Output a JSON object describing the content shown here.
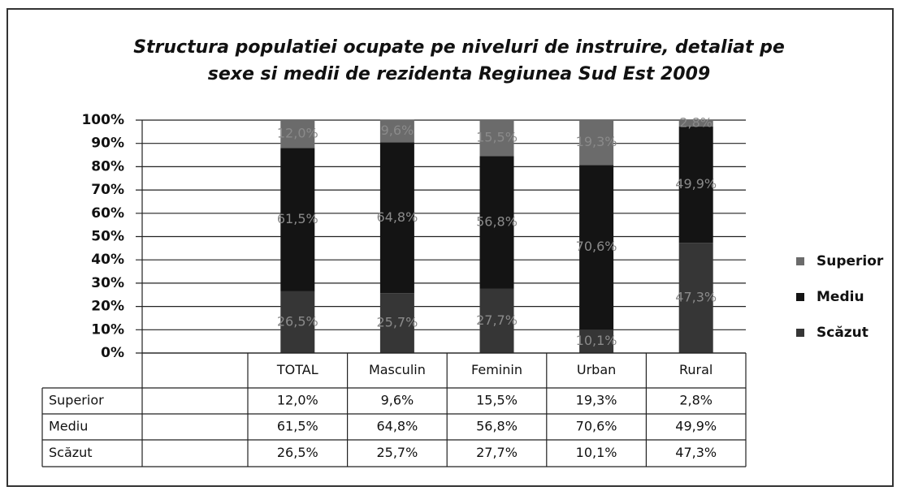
{
  "chart_data": {
    "type": "stacked_bar",
    "title": "Structura populatiei ocupate pe niveluri de instruire, detaliat pe sexe si medii de rezidenta Regiunea Sud Est 2009",
    "categories": [
      "TOTAL",
      "Masculin",
      "Feminin",
      "Urban",
      "Rural"
    ],
    "series": [
      {
        "name": "Scăzut",
        "color": "#363636",
        "values": [
          26.5,
          25.7,
          27.7,
          10.1,
          47.3
        ],
        "value_labels": [
          "26,5%",
          "25,7%",
          "27,7%",
          "10,1%",
          "47,3%"
        ]
      },
      {
        "name": "Mediu",
        "color": "#141414",
        "values": [
          61.5,
          64.8,
          56.8,
          70.6,
          49.9
        ],
        "value_labels": [
          "61,5%",
          "64,8%",
          "56,8%",
          "70,6%",
          "49,9%"
        ]
      },
      {
        "name": "Superior",
        "color": "#6b6b6b",
        "values": [
          12.0,
          9.6,
          15.5,
          19.3,
          2.8
        ],
        "value_labels": [
          "12,0%",
          "9,6%",
          "15,5%",
          "19,3%",
          "2,8%"
        ]
      }
    ],
    "ylim": [
      0,
      100
    ],
    "yticks": [
      {
        "value": 0,
        "label": "0%"
      },
      {
        "value": 10,
        "label": "10%"
      },
      {
        "value": 20,
        "label": "20%"
      },
      {
        "value": 30,
        "label": "30%"
      },
      {
        "value": 40,
        "label": "40%"
      },
      {
        "value": 50,
        "label": "50%"
      },
      {
        "value": 60,
        "label": "60%"
      },
      {
        "value": 70,
        "label": "70%"
      },
      {
        "value": 80,
        "label": "80%"
      },
      {
        "value": 90,
        "label": "90%"
      },
      {
        "value": 100,
        "label": "100%"
      }
    ],
    "grid": true,
    "legend": "right"
  }
}
